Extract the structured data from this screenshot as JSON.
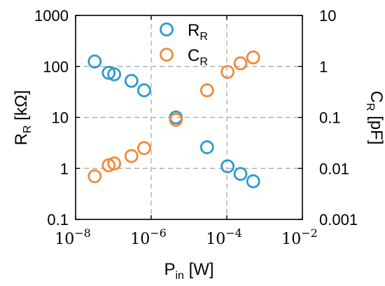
{
  "chart_data": {
    "type": "scatter",
    "x_scale": "log",
    "x_range": [
      1e-08,
      0.01
    ],
    "x_ticks": [
      {
        "value": 1e-08,
        "base": "10",
        "exp": "−8"
      },
      {
        "value": 1e-06,
        "base": "10",
        "exp": "−6"
      },
      {
        "value": 0.0001,
        "base": "10",
        "exp": "−4"
      },
      {
        "value": 0.01,
        "base": "10",
        "exp": "−2"
      }
    ],
    "xlabel": {
      "main": "P",
      "sub": "in",
      "unit": " [W]"
    },
    "y_left": {
      "scale": "log",
      "range": [
        0.1,
        1000
      ],
      "ticks": [
        {
          "value": 0.1,
          "label": "0.1"
        },
        {
          "value": 1,
          "label": "1"
        },
        {
          "value": 10,
          "label": "10"
        },
        {
          "value": 100,
          "label": "100"
        },
        {
          "value": 1000,
          "label": "1000"
        }
      ],
      "label": {
        "main": "R",
        "sub": "R",
        "unit": " [kΩ]"
      }
    },
    "y_right": {
      "scale": "log",
      "range": [
        0.001,
        10
      ],
      "ticks": [
        {
          "value": 0.001,
          "label": "0.001"
        },
        {
          "value": 0.01,
          "label": "0.01"
        },
        {
          "value": 0.1,
          "label": "0.1"
        },
        {
          "value": 1,
          "label": "1"
        },
        {
          "value": 10,
          "label": "10"
        }
      ],
      "label": {
        "main": "C",
        "sub": "R",
        "unit": " [pF]"
      }
    },
    "grid": true,
    "legend_position": "top-center",
    "series": [
      {
        "name": "R",
        "name_sub": "R",
        "axis": "left",
        "color": "#2b9bcc",
        "points": [
          {
            "x": 3.2e-08,
            "y": 125
          },
          {
            "x": 7.5e-08,
            "y": 75
          },
          {
            "x": 1.05e-07,
            "y": 70
          },
          {
            "x": 3e-07,
            "y": 52
          },
          {
            "x": 6.5e-07,
            "y": 34
          },
          {
            "x": 4.5e-06,
            "y": 10
          },
          {
            "x": 3e-05,
            "y": 2.6
          },
          {
            "x": 0.000105,
            "y": 1.1
          },
          {
            "x": 0.00023,
            "y": 0.78
          },
          {
            "x": 0.0005,
            "y": 0.56
          }
        ]
      },
      {
        "name": "C",
        "name_sub": "R",
        "axis": "right",
        "color": "#f08a3c",
        "points": [
          {
            "x": 3.2e-08,
            "y": 0.007
          },
          {
            "x": 7.5e-08,
            "y": 0.0115
          },
          {
            "x": 1.05e-07,
            "y": 0.0125
          },
          {
            "x": 3e-07,
            "y": 0.0175
          },
          {
            "x": 6.5e-07,
            "y": 0.025
          },
          {
            "x": 4.5e-06,
            "y": 0.09
          },
          {
            "x": 3e-05,
            "y": 0.34
          },
          {
            "x": 0.000105,
            "y": 0.78
          },
          {
            "x": 0.00023,
            "y": 1.15
          },
          {
            "x": 0.0005,
            "y": 1.5
          }
        ]
      }
    ]
  }
}
